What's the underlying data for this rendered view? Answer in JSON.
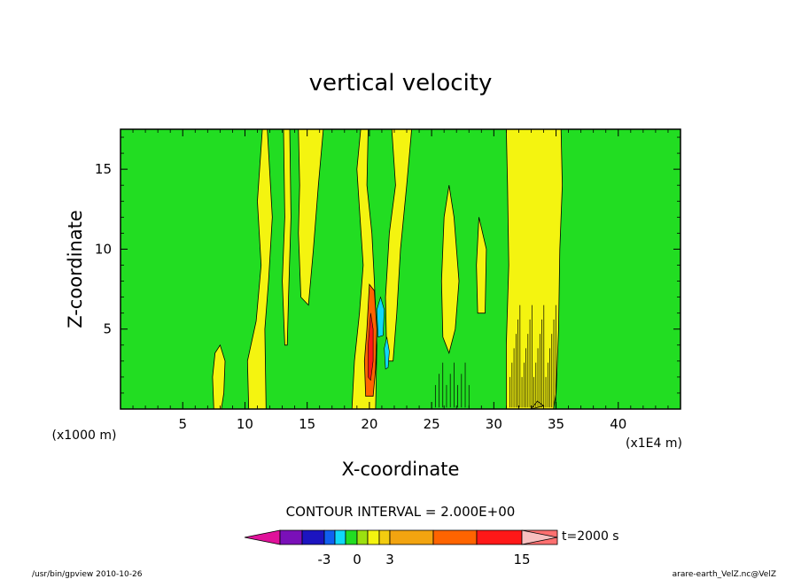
{
  "chart_data": {
    "type": "heatmap",
    "title": "vertical velocity",
    "xlabel": "X-coordinate",
    "ylabel": "Z-coordinate",
    "x_unit": "(x1000 m)",
    "x_scale_note": "(x1E4 m)",
    "xlim": [
      0,
      45
    ],
    "ylim": [
      0,
      17.5
    ],
    "x_ticks": [
      5,
      10,
      15,
      20,
      25,
      30,
      35,
      40
    ],
    "y_ticks": [
      5,
      10,
      15
    ],
    "grid": false,
    "contour_interval_text": "CONTOUR INTERVAL = 2.000E+00",
    "colorbar": {
      "colors": [
        "#e0129a",
        "#7a10b8",
        "#1c14c0",
        "#1060f0",
        "#10d8f8",
        "#22dd22",
        "#9ce010",
        "#f4f410",
        "#f2cc10",
        "#f2a410",
        "#ff6400",
        "#ff1818",
        "#ff7070",
        "#f7c0c0"
      ],
      "labels": [
        {
          "text": "-3",
          "level": -3
        },
        {
          "text": "0",
          "level": 0
        },
        {
          "text": "3",
          "level": 3
        },
        {
          "text": "15",
          "level": 15
        }
      ],
      "time_label": "t=2000 s"
    },
    "fields": [
      {
        "name": "background (near 0)",
        "value": 0,
        "color": "#22dd22"
      },
      {
        "name": "updraft columns (0 to 2)",
        "value": 1,
        "color": "#f4f410",
        "regions_x": [
          [
            10.2,
            11.6
          ],
          [
            13.0,
            13.6
          ],
          [
            14.3,
            16.2
          ],
          [
            18.6,
            20.2
          ],
          [
            21.3,
            23.4
          ],
          [
            25.8,
            27.2
          ],
          [
            28.7,
            29.4
          ],
          [
            31.0,
            35.3
          ]
        ]
      },
      {
        "name": "strong updraft core",
        "value": 6,
        "color": "#ff6400",
        "x": [
          19.7,
          20.6
        ],
        "z": [
          0.8,
          7.8
        ]
      },
      {
        "name": "downdraft core",
        "value": -3,
        "color": "#10d8f8",
        "x": [
          20.6,
          21.2
        ],
        "z": [
          4.5,
          7.0
        ]
      }
    ]
  },
  "footer": {
    "left": "/usr/bin/gpview   2010-10-26",
    "right": "arare-earth_VelZ.nc@VelZ"
  }
}
